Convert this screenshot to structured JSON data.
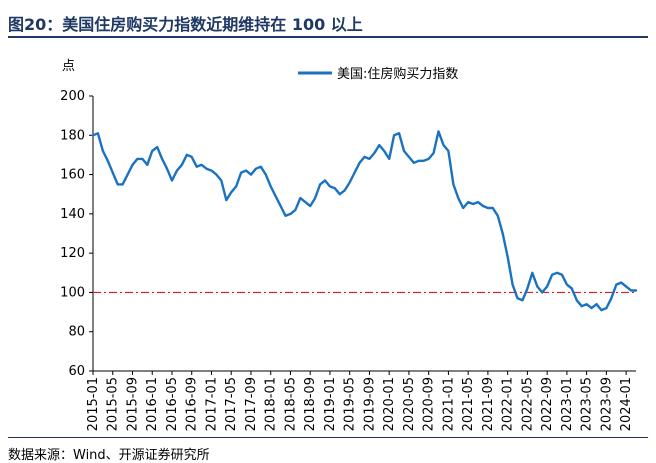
{
  "header": {
    "title": "图20：美国住房购买力指数近期维持在 100 以上"
  },
  "footer": {
    "source": "数据来源：Wind、开源证券研究所"
  },
  "colors": {
    "series": "#1a72c0",
    "reference": "#e02020",
    "title": "#1f3864",
    "axis": "#000000"
  },
  "chart_data": {
    "type": "line",
    "ylabel": "点",
    "ylim": [
      60,
      200
    ],
    "yticks": [
      60,
      80,
      100,
      120,
      140,
      160,
      180,
      200
    ],
    "xticklabels": [
      "2015-01",
      "2015-05",
      "2015-09",
      "2016-01",
      "2016-05",
      "2016-09",
      "2017-01",
      "2017-05",
      "2017-09",
      "2018-01",
      "2018-05",
      "2018-09",
      "2019-01",
      "2019-05",
      "2019-09",
      "2020-01",
      "2020-05",
      "2020-09",
      "2021-01",
      "2021-05",
      "2021-09",
      "2022-01",
      "2022-05",
      "2022-09",
      "2023-01",
      "2023-05",
      "2023-09",
      "2024-01"
    ],
    "reference_line": {
      "y": 100,
      "style": "dash-dot"
    },
    "legend_position": "top-right",
    "series": [
      {
        "name": "美国:住房购买力指数",
        "x": [
          "2015-01",
          "2015-02",
          "2015-03",
          "2015-04",
          "2015-05",
          "2015-06",
          "2015-07",
          "2015-08",
          "2015-09",
          "2015-10",
          "2015-11",
          "2015-12",
          "2016-01",
          "2016-02",
          "2016-03",
          "2016-04",
          "2016-05",
          "2016-06",
          "2016-07",
          "2016-08",
          "2016-09",
          "2016-10",
          "2016-11",
          "2016-12",
          "2017-01",
          "2017-02",
          "2017-03",
          "2017-04",
          "2017-05",
          "2017-06",
          "2017-07",
          "2017-08",
          "2017-09",
          "2017-10",
          "2017-11",
          "2017-12",
          "2018-01",
          "2018-02",
          "2018-03",
          "2018-04",
          "2018-05",
          "2018-06",
          "2018-07",
          "2018-08",
          "2018-09",
          "2018-10",
          "2018-11",
          "2018-12",
          "2019-01",
          "2019-02",
          "2019-03",
          "2019-04",
          "2019-05",
          "2019-06",
          "2019-07",
          "2019-08",
          "2019-09",
          "2019-10",
          "2019-11",
          "2019-12",
          "2020-01",
          "2020-02",
          "2020-03",
          "2020-04",
          "2020-05",
          "2020-06",
          "2020-07",
          "2020-08",
          "2020-09",
          "2020-10",
          "2020-11",
          "2020-12",
          "2021-01",
          "2021-02",
          "2021-03",
          "2021-04",
          "2021-05",
          "2021-06",
          "2021-07",
          "2021-08",
          "2021-09",
          "2021-10",
          "2021-11",
          "2021-12",
          "2022-01",
          "2022-02",
          "2022-03",
          "2022-04",
          "2022-05",
          "2022-06",
          "2022-07",
          "2022-08",
          "2022-09",
          "2022-10",
          "2022-11",
          "2022-12",
          "2023-01",
          "2023-02",
          "2023-03",
          "2023-04",
          "2023-05",
          "2023-06",
          "2023-07",
          "2023-08",
          "2023-09",
          "2023-10",
          "2023-11",
          "2023-12",
          "2024-01",
          "2024-02",
          "2024-03"
        ],
        "values": [
          180,
          181,
          172,
          167,
          161,
          155,
          155,
          160,
          165,
          168,
          168,
          165,
          172,
          174,
          168,
          163,
          157,
          162,
          165,
          170,
          169,
          164,
          165,
          163,
          162,
          160,
          157,
          147,
          151,
          154,
          161,
          162,
          160,
          163,
          164,
          160,
          154,
          149,
          144,
          139,
          140,
          142,
          148,
          146,
          144,
          148,
          155,
          157,
          154,
          153,
          150,
          152,
          156,
          161,
          166,
          169,
          168,
          171,
          175,
          172,
          168,
          180,
          181,
          172,
          169,
          166,
          167,
          167,
          168,
          171,
          182,
          175,
          172,
          155,
          148,
          143,
          146,
          145,
          146,
          144,
          143,
          143,
          139,
          130,
          118,
          104,
          97,
          96,
          102,
          110,
          103,
          100,
          103,
          109,
          110,
          109,
          104,
          102,
          96,
          93,
          94,
          92,
          94,
          91,
          92,
          97,
          104,
          105,
          103,
          101,
          101
        ]
      }
    ]
  }
}
